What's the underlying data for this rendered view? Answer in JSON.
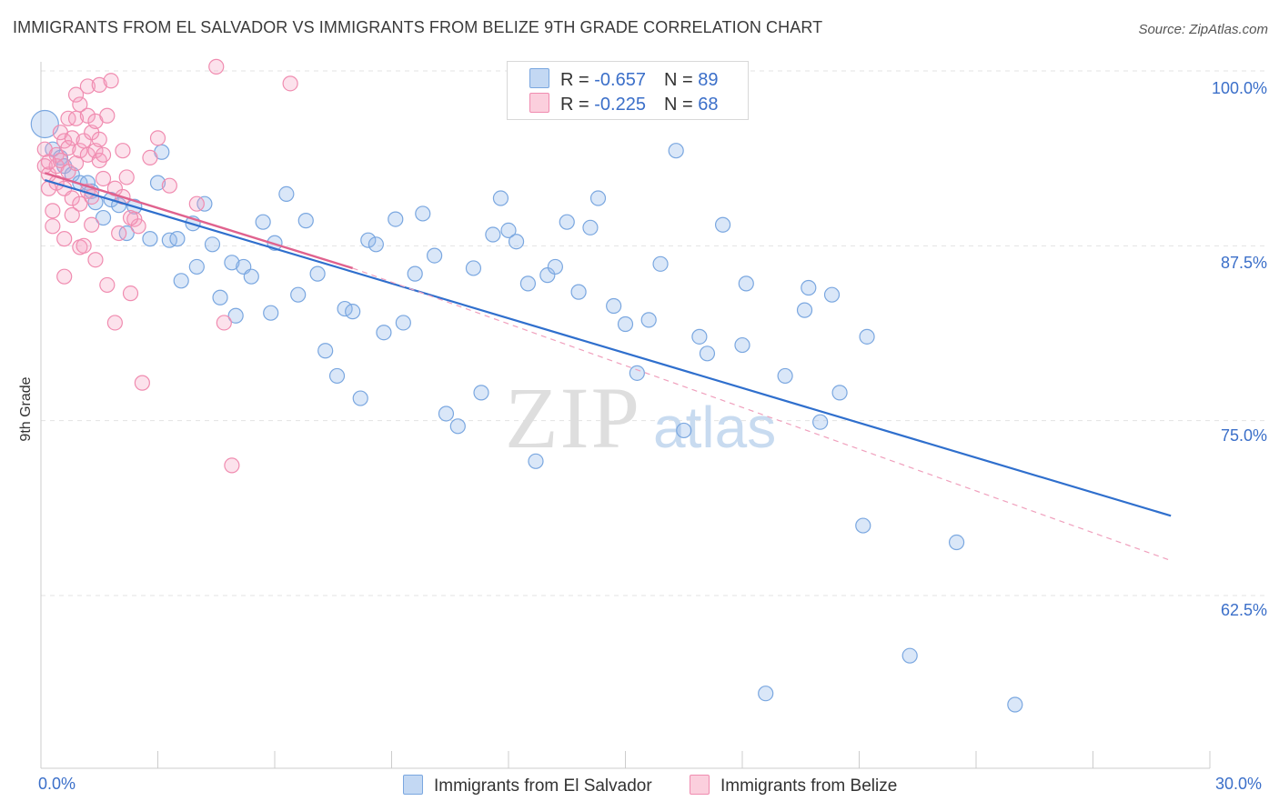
{
  "title": "IMMIGRANTS FROM EL SALVADOR VS IMMIGRANTS FROM BELIZE 9TH GRADE CORRELATION CHART",
  "source": "Source: ZipAtlas.com",
  "watermark": {
    "zip": "ZIP",
    "atlas": "atlas"
  },
  "legend": {
    "row1": {
      "r_label": "R = ",
      "r_value": "-0.657",
      "n_label": "N = ",
      "n_value": "89"
    },
    "row2": {
      "r_label": "R = ",
      "r_value": "-0.225",
      "n_label": "N = ",
      "n_value": "68"
    }
  },
  "bottom_legend": {
    "series1": "Immigrants from El Salvador",
    "series2": "Immigrants from Belize"
  },
  "x_ticks": {
    "left": "0.0%",
    "right": "30.0%"
  },
  "y_ticks": [
    "100.0%",
    "87.5%",
    "75.0%",
    "62.5%"
  ],
  "colors": {
    "blue": "#7aa7e0",
    "blue_line": "#2f6fcd",
    "pink": "#f08cb0",
    "pink_line": "#e0628e",
    "accent_text": "#3b6fc9"
  },
  "chart_data": {
    "type": "scatter",
    "title": "IMMIGRANTS FROM EL SALVADOR VS IMMIGRANTS FROM BELIZE 9TH GRADE CORRELATION CHART",
    "xlabel": "",
    "ylabel": "9th Grade",
    "xlim": [
      0,
      30
    ],
    "ylim": [
      51.6,
      101.8
    ],
    "y_ticks": [
      100,
      87.5,
      75,
      62.5
    ],
    "series": [
      {
        "name": "Immigrants from El Salvador",
        "r": -0.657,
        "n": 89,
        "trend": {
          "x0": 0.1,
          "y0": 92.2,
          "x1": 29.0,
          "y1": 68.2
        },
        "points": [
          [
            0.1,
            96.2
          ],
          [
            0.3,
            94.4
          ],
          [
            0.5,
            93.8
          ],
          [
            0.6,
            93.2
          ],
          [
            0.8,
            92.6
          ],
          [
            1.0,
            92.0
          ],
          [
            1.2,
            92.0
          ],
          [
            1.3,
            91.4
          ],
          [
            1.4,
            90.6
          ],
          [
            1.6,
            89.5
          ],
          [
            1.8,
            90.8
          ],
          [
            2.0,
            90.4
          ],
          [
            2.2,
            88.4
          ],
          [
            2.8,
            88.0
          ],
          [
            3.0,
            92.0
          ],
          [
            3.3,
            87.9
          ],
          [
            3.5,
            88.0
          ],
          [
            3.6,
            85.0
          ],
          [
            3.9,
            89.1
          ],
          [
            4.0,
            86.0
          ],
          [
            4.2,
            90.5
          ],
          [
            4.4,
            87.6
          ],
          [
            4.6,
            83.8
          ],
          [
            4.9,
            86.3
          ],
          [
            5.0,
            82.5
          ],
          [
            5.2,
            86.0
          ],
          [
            5.4,
            85.3
          ],
          [
            5.7,
            89.2
          ],
          [
            5.9,
            82.7
          ],
          [
            6.0,
            87.7
          ],
          [
            6.3,
            91.2
          ],
          [
            6.6,
            84.0
          ],
          [
            6.8,
            89.3
          ],
          [
            7.1,
            85.5
          ],
          [
            7.3,
            80.0
          ],
          [
            7.6,
            78.2
          ],
          [
            7.8,
            83.0
          ],
          [
            8.0,
            82.8
          ],
          [
            8.2,
            76.6
          ],
          [
            8.4,
            87.9
          ],
          [
            8.6,
            87.6
          ],
          [
            8.8,
            81.3
          ],
          [
            9.1,
            89.4
          ],
          [
            9.3,
            82.0
          ],
          [
            9.6,
            85.5
          ],
          [
            9.8,
            89.8
          ],
          [
            10.1,
            86.8
          ],
          [
            10.4,
            75.5
          ],
          [
            10.7,
            74.6
          ],
          [
            11.1,
            85.9
          ],
          [
            11.3,
            77.0
          ],
          [
            11.6,
            88.3
          ],
          [
            11.8,
            90.9
          ],
          [
            12.0,
            88.6
          ],
          [
            12.2,
            87.8
          ],
          [
            12.5,
            84.8
          ],
          [
            12.7,
            72.1
          ],
          [
            13.0,
            85.4
          ],
          [
            13.2,
            86.0
          ],
          [
            13.5,
            89.2
          ],
          [
            13.8,
            84.2
          ],
          [
            14.1,
            88.8
          ],
          [
            14.3,
            90.9
          ],
          [
            14.7,
            83.2
          ],
          [
            15.0,
            81.9
          ],
          [
            15.3,
            78.4
          ],
          [
            15.6,
            82.2
          ],
          [
            15.9,
            86.2
          ],
          [
            16.3,
            94.3
          ],
          [
            16.5,
            74.3
          ],
          [
            16.9,
            81.0
          ],
          [
            17.1,
            79.8
          ],
          [
            17.5,
            89.0
          ],
          [
            18.0,
            80.4
          ],
          [
            18.1,
            84.8
          ],
          [
            18.6,
            55.5
          ],
          [
            19.1,
            78.2
          ],
          [
            19.6,
            82.9
          ],
          [
            19.7,
            84.5
          ],
          [
            20.0,
            74.9
          ],
          [
            20.3,
            84.0
          ],
          [
            20.5,
            77.0
          ],
          [
            21.1,
            67.5
          ],
          [
            21.2,
            81.0
          ],
          [
            22.3,
            58.2
          ],
          [
            23.5,
            66.3
          ],
          [
            25.0,
            54.7
          ],
          [
            3.1,
            94.2
          ],
          [
            2.4,
            90.3
          ]
        ]
      },
      {
        "name": "Immigrants from Belize",
        "r": -0.225,
        "n": 68,
        "trend": {
          "x0": 0.1,
          "y0": 92.7,
          "x1": 8.0,
          "y1": 85.9
        },
        "dashed_extension": {
          "x0": 8.0,
          "y0": 85.9,
          "x1": 29.0,
          "y1": 65.0
        },
        "points": [
          [
            0.1,
            94.4
          ],
          [
            0.1,
            93.2
          ],
          [
            0.2,
            92.6
          ],
          [
            0.2,
            91.6
          ],
          [
            0.3,
            90.0
          ],
          [
            0.3,
            88.9
          ],
          [
            0.4,
            94.0
          ],
          [
            0.4,
            93.2
          ],
          [
            0.5,
            95.6
          ],
          [
            0.5,
            93.6
          ],
          [
            0.6,
            95.0
          ],
          [
            0.6,
            91.6
          ],
          [
            0.6,
            88.0
          ],
          [
            0.6,
            85.3
          ],
          [
            0.7,
            96.6
          ],
          [
            0.7,
            94.5
          ],
          [
            0.7,
            92.8
          ],
          [
            0.8,
            95.2
          ],
          [
            0.8,
            90.9
          ],
          [
            0.8,
            89.7
          ],
          [
            0.9,
            96.6
          ],
          [
            0.9,
            93.4
          ],
          [
            0.9,
            98.3
          ],
          [
            1.0,
            97.6
          ],
          [
            1.0,
            94.3
          ],
          [
            1.0,
            90.5
          ],
          [
            1.0,
            87.4
          ],
          [
            1.1,
            95.0
          ],
          [
            1.1,
            87.5
          ],
          [
            1.2,
            98.9
          ],
          [
            1.2,
            96.8
          ],
          [
            1.2,
            94.0
          ],
          [
            1.2,
            91.4
          ],
          [
            1.3,
            95.6
          ],
          [
            1.3,
            91.0
          ],
          [
            1.3,
            89.0
          ],
          [
            1.4,
            96.4
          ],
          [
            1.4,
            94.3
          ],
          [
            1.4,
            86.5
          ],
          [
            1.5,
            99.0
          ],
          [
            1.5,
            95.1
          ],
          [
            1.5,
            93.6
          ],
          [
            1.6,
            94.0
          ],
          [
            1.6,
            92.3
          ],
          [
            1.7,
            96.8
          ],
          [
            1.7,
            84.7
          ],
          [
            1.8,
            99.3
          ],
          [
            1.9,
            91.6
          ],
          [
            1.9,
            82.0
          ],
          [
            2.0,
            88.4
          ],
          [
            2.1,
            94.3
          ],
          [
            2.1,
            91.0
          ],
          [
            2.2,
            92.4
          ],
          [
            2.3,
            84.1
          ],
          [
            2.4,
            89.4
          ],
          [
            2.5,
            88.9
          ],
          [
            2.6,
            77.7
          ],
          [
            2.8,
            93.8
          ],
          [
            3.0,
            95.2
          ],
          [
            3.3,
            91.8
          ],
          [
            4.0,
            90.5
          ],
          [
            4.5,
            100.3
          ],
          [
            4.7,
            82.0
          ],
          [
            4.9,
            71.8
          ],
          [
            6.4,
            99.1
          ],
          [
            2.3,
            89.5
          ],
          [
            0.2,
            93.5
          ],
          [
            0.4,
            92.0
          ]
        ]
      }
    ]
  }
}
